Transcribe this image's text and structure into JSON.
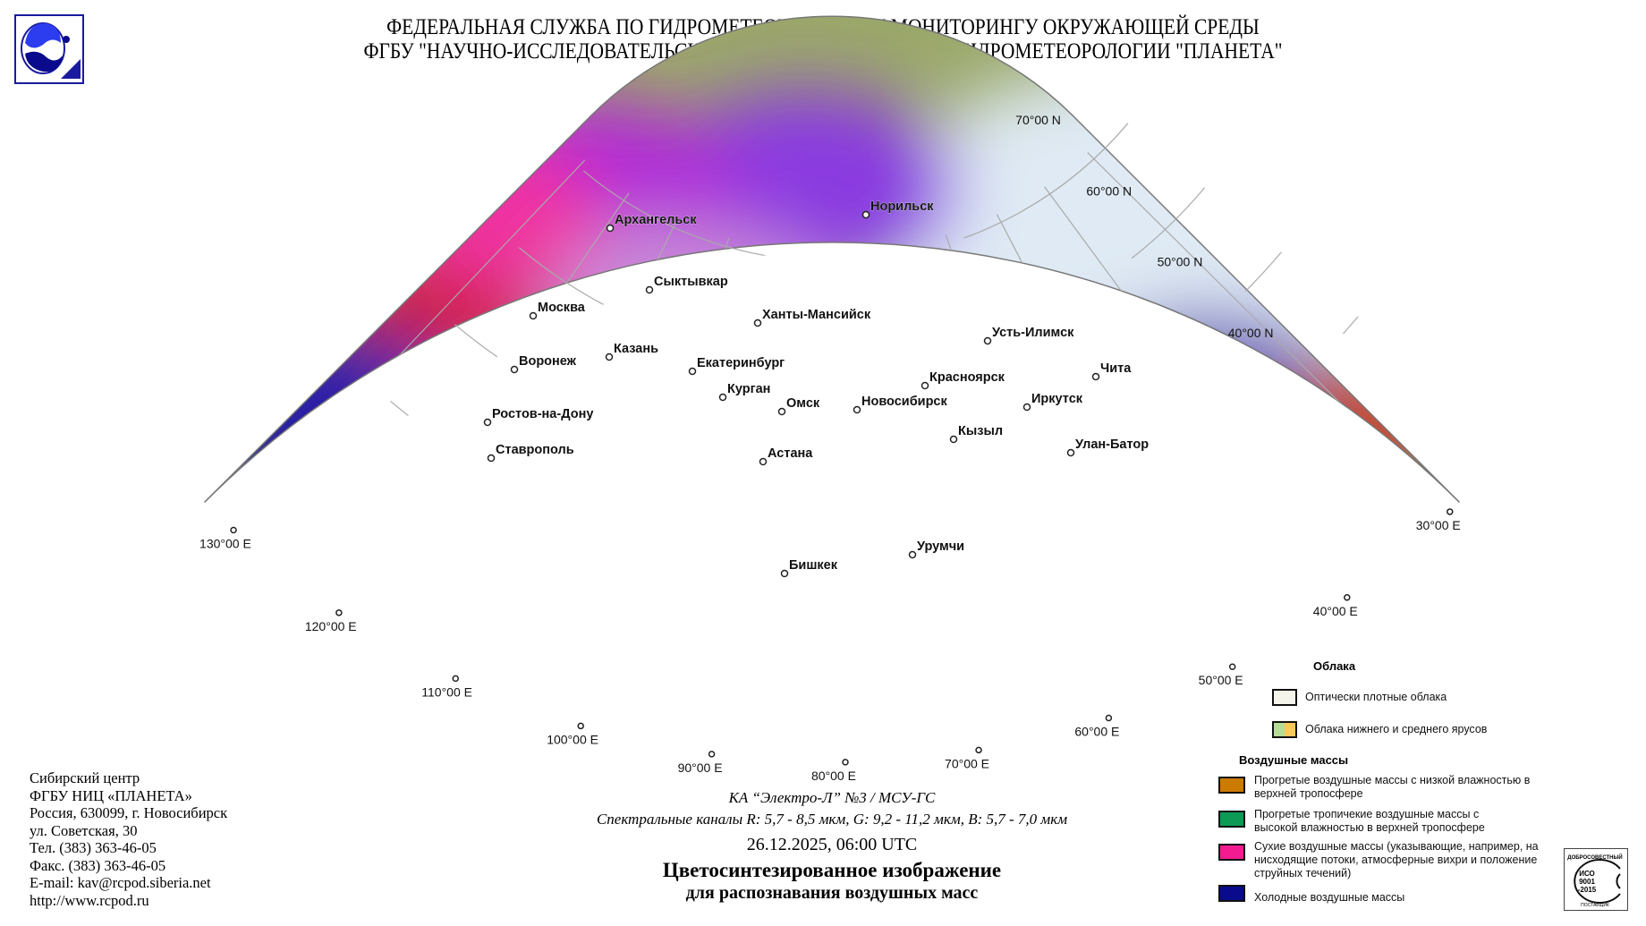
{
  "header": {
    "line1": "ФЕДЕРАЛЬНАЯ СЛУЖБА ПО ГИДРОМЕТЕОРОЛОГИИ И МОНИТОРИНГУ ОКРУЖАЮЩЕЙ СРЕДЫ",
    "line2": "ФГБУ \"НАУЧНО-ИССЛЕДОВАТЕЛЬСКИЙ ЦЕНТР КОСМИЧЕСКОЙ ГИДРОМЕТЕОРОЛОГИИ \"ПЛАНЕТА\"",
    "line3": "СИБИРСКИЙ ЦЕНТР",
    "logo_icon": "planeta-logo"
  },
  "map": {
    "latitudes": [
      "70°00 N",
      "60°00 N",
      "50°00 N",
      "40°00 N"
    ],
    "longitudes": [
      "30°00 E",
      "40°00 E",
      "50°00 E",
      "60°00 E",
      "70°00 E",
      "80°00 E",
      "90°00 E",
      "100°00 E",
      "110°00 E",
      "120°00 E",
      "130°00 E"
    ],
    "cities": [
      "Архангельск",
      "Норильск",
      "Сыктывкар",
      "Москва",
      "Ханты-Мансийск",
      "Усть-Илимск",
      "Казань",
      "Воронеж",
      "Екатеринбург",
      "Красноярск",
      "Чита",
      "Курган",
      "Омск",
      "Новосибирск",
      "Иркутск",
      "Ростов-на-Дону",
      "Кызыл",
      "Улан-Батор",
      "Ставрополь",
      "Астана",
      "Урумчи",
      "Бишкек"
    ]
  },
  "address": [
    "Сибирский центр",
    "ФГБУ НИЦ «ПЛАНЕТА»",
    "Россия, 630099, г. Новосибирск",
    "ул. Советская, 30",
    "Тел. (383) 363-46-05",
    "Факс. (383) 363-46-05",
    "E-mail: kav@rcpod.siberia.net",
    "http://www.rcpod.ru"
  ],
  "caption": {
    "satellite": "КА “Электро-Л” №3 / МСУ-ГС",
    "channels": "Спектральные каналы R: 5,7 - 8,5 мкм, G: 9,2 - 11,2 мкм, B: 5,7 - 7,0 мкм",
    "datetime": "26.12.2025, 06:00 UTC",
    "title1": "Цветосинтезированное изображение",
    "title2": "для распознавания воздушных масс"
  },
  "legend": {
    "clouds_title": "Облака",
    "clouds": [
      {
        "label": "Оптически плотные облака",
        "colors": [
          "#f4f4ea"
        ]
      },
      {
        "label": "Облака нижнего и среднего ярусов",
        "colors": [
          "#b6dd96",
          "#f9c95a"
        ]
      }
    ],
    "masses_title": "Воздушные массы",
    "masses": [
      {
        "label": "Прогретые воздушные массы с низкой влажностью в верхней тропосфере",
        "color": "#cc7a00"
      },
      {
        "label": "Прогретые тропичекие воздушные массы с высокой влажностью в верхней тропосфере",
        "color": "#0c9a55"
      },
      {
        "label": "Сухие воздушные массы (указывающие, например, на нисходящие потоки, атмосферные вихри и положение струйных течений)",
        "color": "#f21b90"
      },
      {
        "label": "Холодные воздушные массы",
        "color": "#0a0a8c"
      }
    ]
  },
  "iso_stamp": {
    "top": "ДОБРОСОВЕСТНЫЙ",
    "center": "ИСО 9001 -2015",
    "bottom": "ПОСТАВЩИК"
  }
}
